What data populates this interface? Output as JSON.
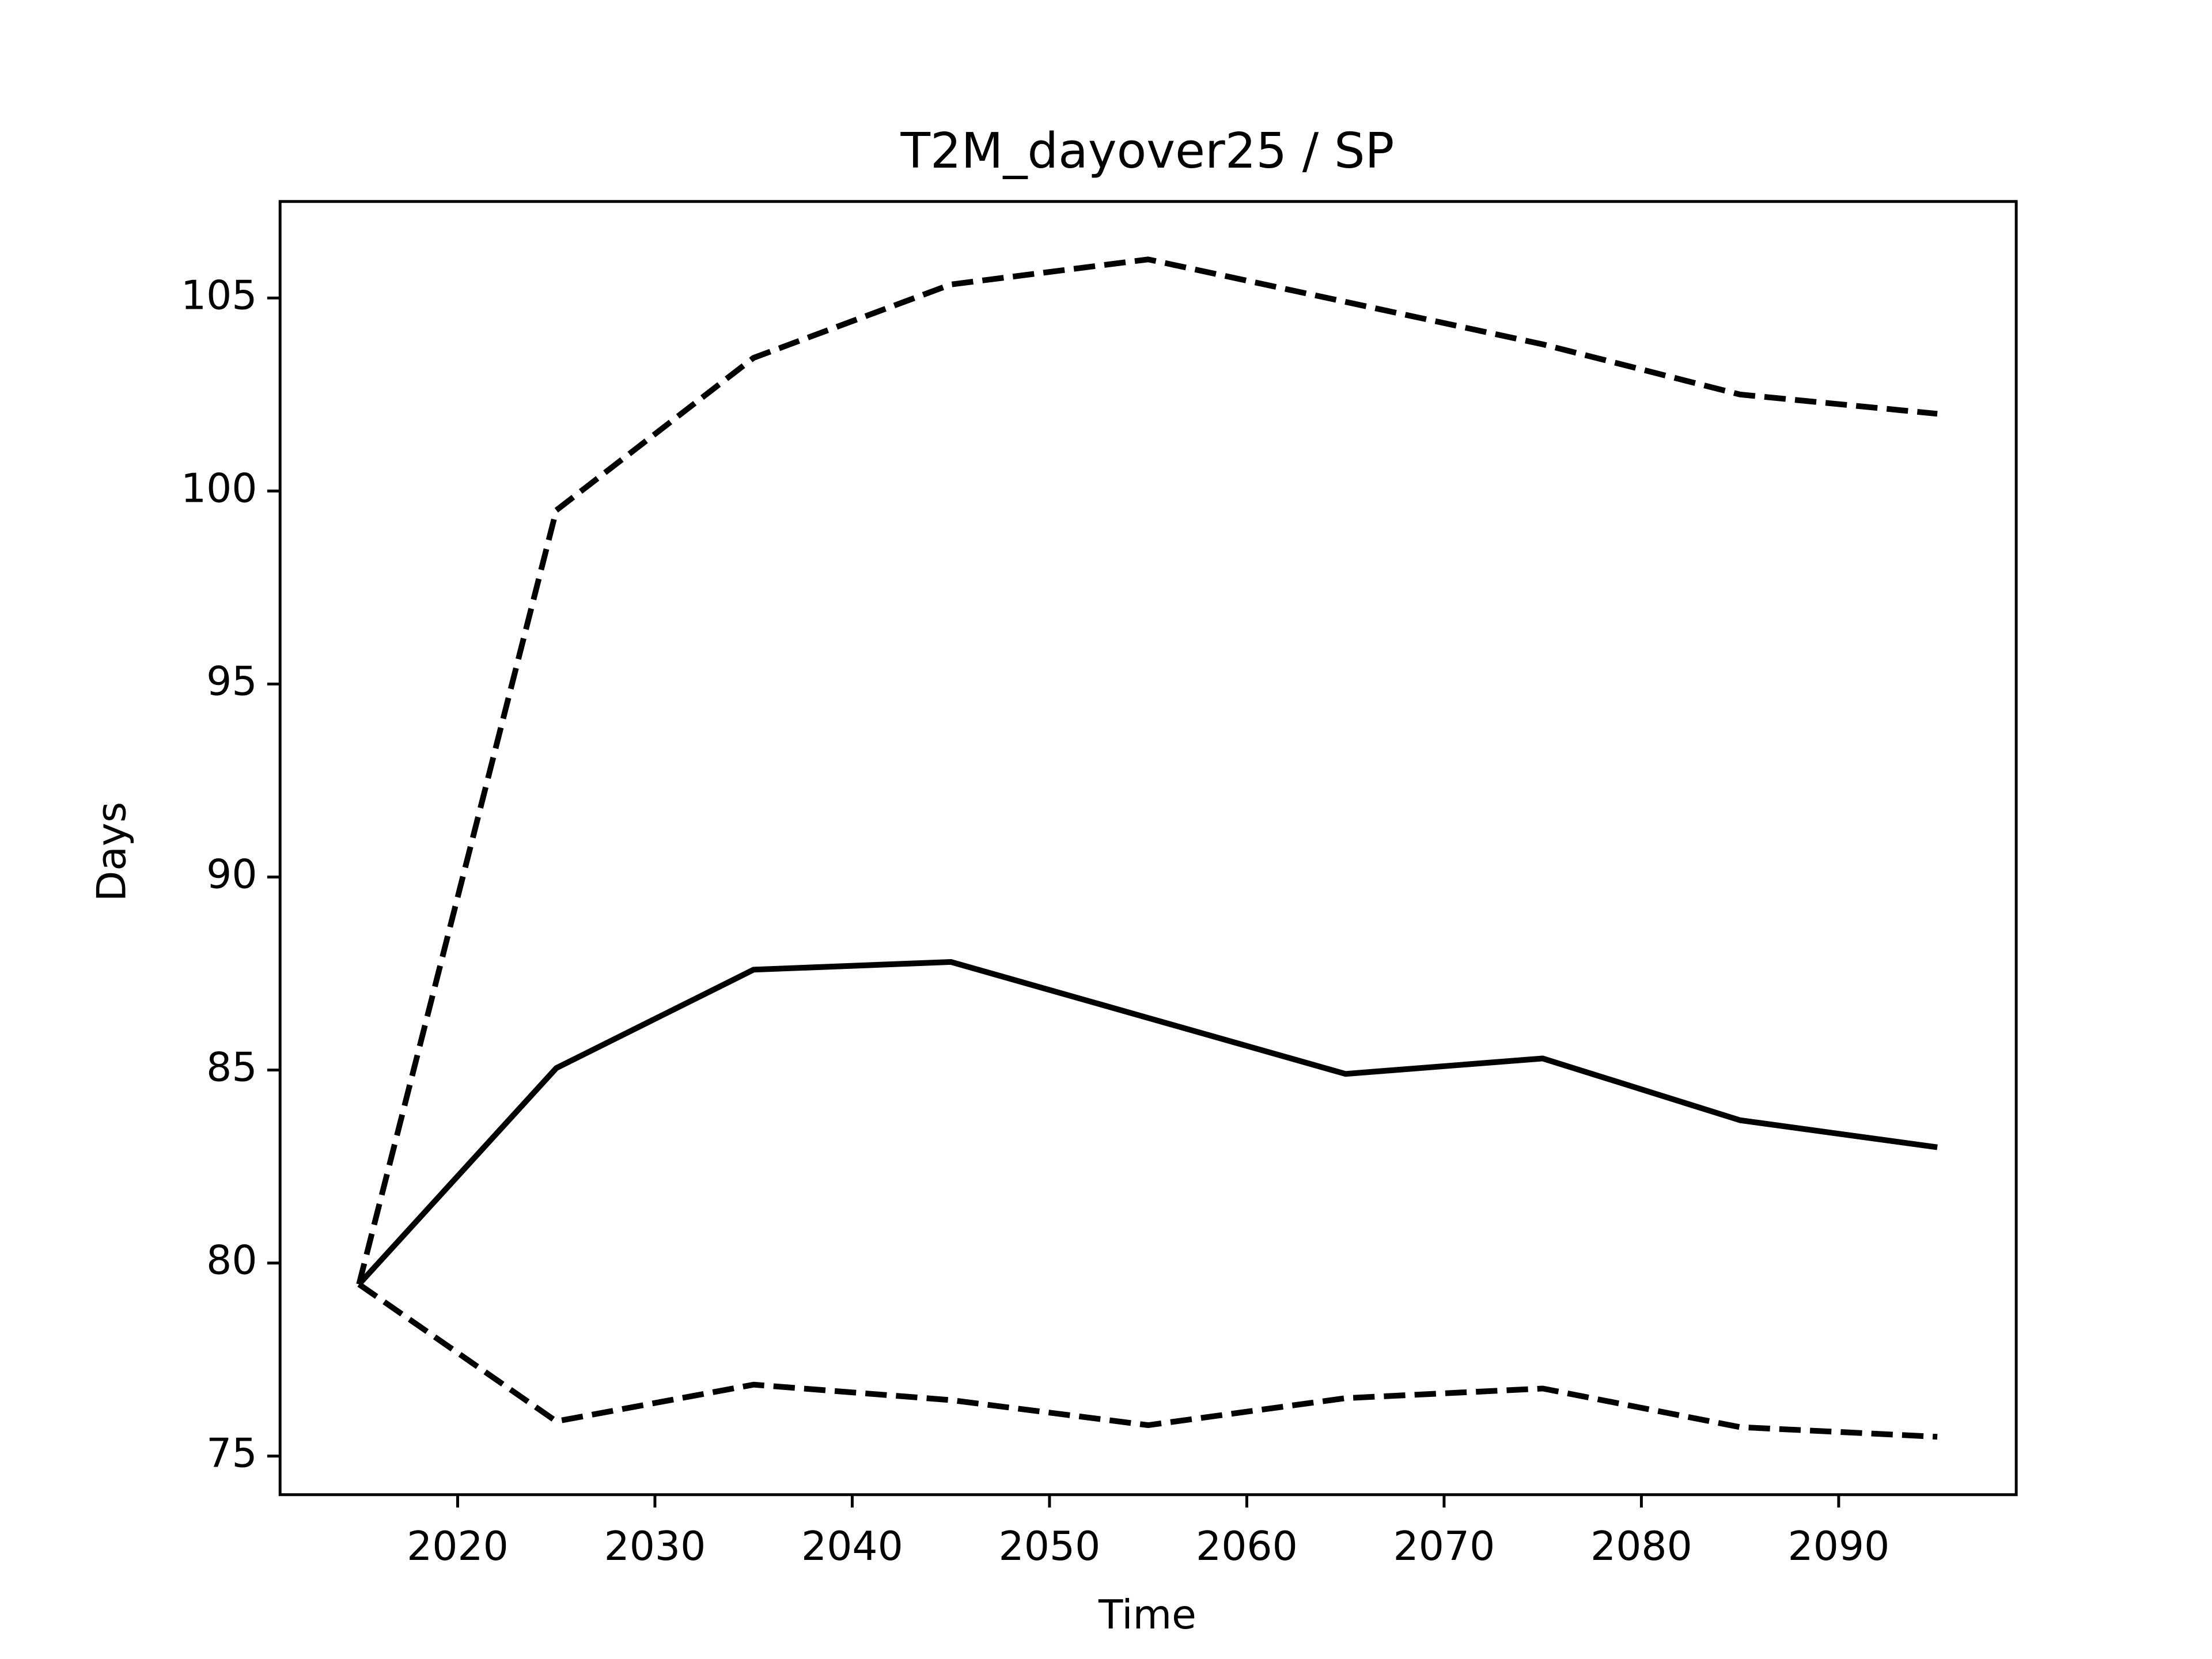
{
  "chart_data": {
    "type": "line",
    "title": "T2M_dayover25 / SP",
    "x_label": "Time",
    "y_label": "Days",
    "x": [
      2015,
      2025,
      2035,
      2045,
      2055,
      2065,
      2075,
      2085,
      2095
    ],
    "series": [
      {
        "color": "#000000",
        "linestyle": "solid",
        "values": [
          79.45,
          85.05,
          87.6,
          87.8,
          86.35,
          84.9,
          85.3,
          83.7,
          83.0
        ]
      },
      {
        "color": "#000000",
        "linestyle": "dashed",
        "values": [
          79.45,
          99.5,
          103.45,
          105.35,
          106.0,
          104.9,
          103.8,
          102.5,
          102.0
        ]
      },
      {
        "color": "#000000",
        "linestyle": "dashed",
        "values": [
          79.45,
          75.9,
          76.85,
          76.45,
          75.8,
          76.5,
          76.75,
          75.75,
          75.5
        ]
      }
    ],
    "xlim": [
      2011,
      2099
    ],
    "ylim": [
      74,
      107.5
    ],
    "xticks": [
      2020,
      2030,
      2040,
      2050,
      2060,
      2070,
      2080,
      2090
    ],
    "yticks": [
      75,
      80,
      85,
      90,
      95,
      100,
      105
    ],
    "grid": false
  }
}
